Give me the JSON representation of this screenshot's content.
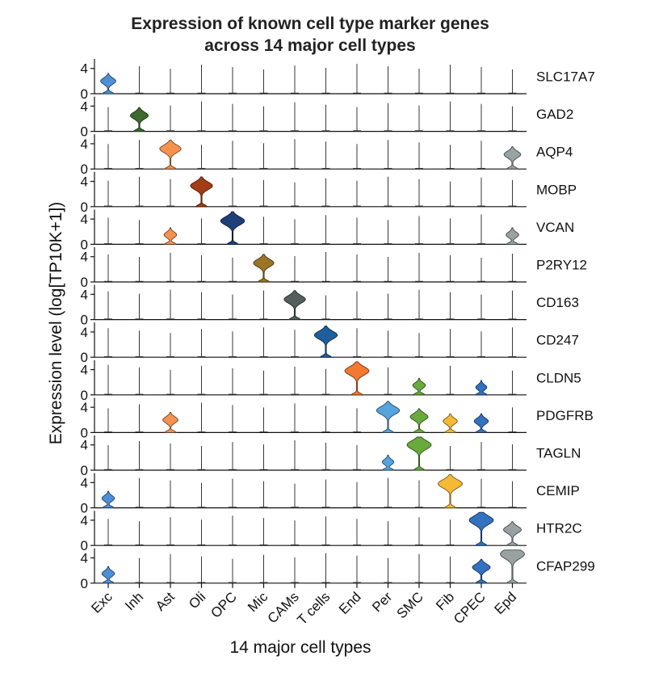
{
  "chart_data": {
    "type": "violin",
    "title": "Expression of known cell type marker genes across 14 major cell types",
    "title_lines": [
      "Expression of known cell type marker genes",
      "across 14 major cell types"
    ],
    "xlabel": "14 major cell types",
    "ylabel": "Expression level (log[TP10K+1])",
    "ylim": [
      0,
      5.5
    ],
    "yticks": [
      "0",
      "4"
    ],
    "categories": [
      "Exc",
      "Inh",
      "Ast",
      "Oli",
      "OPC",
      "Mic",
      "CAMs",
      "T cells",
      "End",
      "Per",
      "SMC",
      "Fib",
      "CPEC",
      "Epd"
    ],
    "category_colors": [
      "#4f8fd6",
      "#3c6b2c",
      "#f6924f",
      "#a23d14",
      "#1e3f78",
      "#9a7525",
      "#555e5c",
      "#1f5e9c",
      "#f2792d",
      "#56a4dd",
      "#69aa3d",
      "#f6b936",
      "#3272bf",
      "#97a2a1"
    ],
    "genes": [
      {
        "name": "SLC17A7",
        "values": [
          2.0,
          0.05,
          0.05,
          0.05,
          0.05,
          0.05,
          0.05,
          0.05,
          0.05,
          0.05,
          0.05,
          0.05,
          0.05,
          0.05
        ]
      },
      {
        "name": "GAD2",
        "values": [
          0.05,
          2.5,
          0.05,
          0.05,
          0.05,
          0.05,
          0.05,
          0.05,
          0.05,
          0.05,
          0.05,
          0.05,
          0.05,
          0.05
        ]
      },
      {
        "name": "AQP4",
        "values": [
          0.05,
          0.05,
          3.2,
          0.05,
          0.05,
          0.05,
          0.05,
          0.05,
          0.05,
          0.05,
          0.05,
          0.05,
          0.05,
          2.3
        ]
      },
      {
        "name": "MOBP",
        "values": [
          0.05,
          0.05,
          0.05,
          3.3,
          0.05,
          0.05,
          0.05,
          0.05,
          0.05,
          0.05,
          0.05,
          0.05,
          0.05,
          0.05
        ]
      },
      {
        "name": "VCAN",
        "values": [
          0.05,
          0.05,
          1.5,
          0.05,
          3.7,
          0.05,
          0.05,
          0.05,
          0.05,
          0.05,
          0.05,
          0.05,
          0.05,
          1.5
        ]
      },
      {
        "name": "P2RY12",
        "values": [
          0.05,
          0.05,
          0.05,
          0.05,
          0.05,
          3.0,
          0.05,
          0.05,
          0.05,
          0.05,
          0.05,
          0.05,
          0.05,
          0.05
        ]
      },
      {
        "name": "CD163",
        "values": [
          0.05,
          0.05,
          0.05,
          0.05,
          0.05,
          0.05,
          3.2,
          0.05,
          0.05,
          0.05,
          0.05,
          0.05,
          0.05,
          0.05
        ]
      },
      {
        "name": "CD247",
        "values": [
          0.05,
          0.05,
          0.05,
          0.05,
          0.05,
          0.05,
          0.05,
          3.5,
          0.05,
          0.05,
          0.05,
          0.05,
          0.05,
          0.05
        ]
      },
      {
        "name": "CLDN5",
        "values": [
          0.05,
          0.05,
          0.05,
          0.05,
          0.05,
          0.05,
          0.05,
          0.05,
          3.8,
          0.05,
          1.5,
          0.05,
          1.2,
          0.05
        ]
      },
      {
        "name": "PDGFRB",
        "values": [
          0.05,
          0.05,
          2.0,
          0.05,
          0.05,
          0.05,
          0.05,
          0.05,
          0.05,
          3.5,
          2.5,
          1.8,
          1.8,
          0.05
        ]
      },
      {
        "name": "TAGLN",
        "values": [
          0.05,
          0.05,
          0.05,
          0.05,
          0.05,
          0.05,
          0.05,
          0.05,
          0.05,
          1.3,
          4.0,
          0.05,
          0.05,
          0.05
        ]
      },
      {
        "name": "CEMIP",
        "values": [
          1.5,
          0.05,
          0.05,
          0.05,
          0.05,
          0.05,
          0.05,
          0.05,
          0.05,
          0.05,
          0.05,
          3.8,
          0.05,
          0.05
        ]
      },
      {
        "name": "HTR2C",
        "values": [
          0.05,
          0.05,
          0.05,
          0.05,
          0.05,
          0.05,
          0.05,
          0.05,
          0.05,
          0.05,
          0.05,
          0.05,
          4.0,
          2.5
        ]
      },
      {
        "name": "CFAP299",
        "values": [
          1.5,
          0.05,
          0.05,
          0.05,
          0.05,
          0.05,
          0.05,
          0.05,
          0.05,
          0.05,
          0.05,
          0.05,
          2.5,
          4.6
        ]
      }
    ],
    "grid": false,
    "legend": "none"
  }
}
